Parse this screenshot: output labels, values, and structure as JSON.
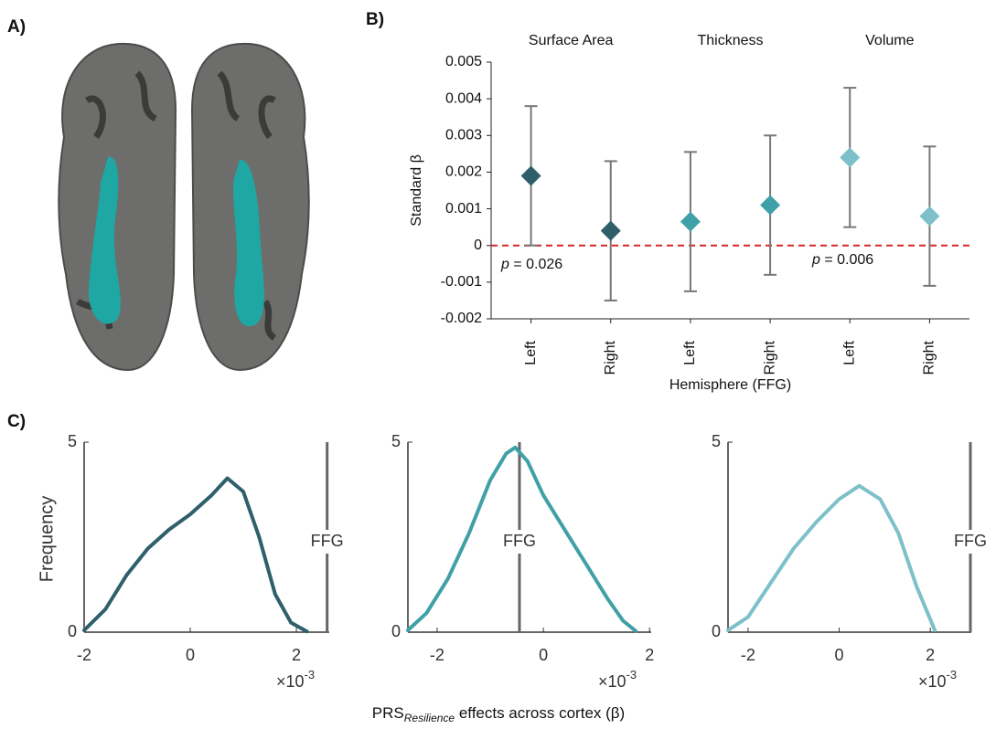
{
  "panel_labels": [
    "A)",
    "B)",
    "C)"
  ],
  "chart_data": [
    {
      "type": "errorbar",
      "categories": [
        "Left",
        "Right",
        "Left",
        "Right",
        "Left",
        "Right"
      ],
      "group_labels": [
        "Surface Area",
        "Thickness",
        "Volume"
      ],
      "values": [
        0.0019,
        0.0004,
        0.00065,
        0.0011,
        0.0024,
        0.0008
      ],
      "errors": [
        0.0019,
        0.0019,
        0.0019,
        0.0019,
        0.0019,
        0.0019
      ],
      "colors": [
        "#2e5f6b",
        "#2e5f6b",
        "#40a0a8",
        "#40a0a8",
        "#7ec0c9",
        "#7ec0c9"
      ],
      "error_color": "#777777",
      "ylim": [
        -0.002,
        0.005
      ],
      "yticks": [
        -0.002,
        -0.001,
        0,
        0.001,
        0.002,
        0.003,
        0.004,
        0.005
      ],
      "ylabel": "Standard β",
      "xlabel": "Hemisphere (FFG)",
      "reference_line": 0,
      "reference_color": "#d62728",
      "annotations": [
        "p = 0.026",
        "p = 0.006"
      ]
    },
    {
      "type": "line",
      "color": "#2e5f6b",
      "x": [
        -2.0,
        -1.6,
        -1.2,
        -0.8,
        -0.4,
        0,
        0.4,
        0.7,
        1.0,
        1.3,
        1.6,
        1.9,
        2.2
      ],
      "y": [
        0.05,
        0.6,
        1.5,
        2.2,
        2.7,
        3.1,
        3.6,
        4.05,
        3.7,
        2.5,
        1.0,
        0.25,
        0.02
      ],
      "xlim": [
        -2.0,
        2.62
      ],
      "xticks": [
        -2,
        0,
        2
      ],
      "ylim": [
        0,
        5
      ],
      "yticks": [
        0,
        5
      ],
      "ylabel": "Frequency",
      "marker_x": 2.58,
      "marker_label": "FFG",
      "x_multiplier": {
        "base": "×10",
        "exponent": "-3"
      }
    },
    {
      "type": "line",
      "color": "#40a0a8",
      "x": [
        -2.55,
        -2.2,
        -1.8,
        -1.4,
        -1.0,
        -0.7,
        -0.53,
        -0.3,
        0,
        0.4,
        0.8,
        1.2,
        1.5,
        1.74
      ],
      "y": [
        0.05,
        0.5,
        1.4,
        2.6,
        4.0,
        4.7,
        4.86,
        4.5,
        3.6,
        2.7,
        1.8,
        0.9,
        0.3,
        0.03
      ],
      "xlim": [
        -2.55,
        2.03
      ],
      "xticks": [
        -2,
        0,
        2
      ],
      "ylim": [
        0,
        5
      ],
      "yticks": [
        0,
        5
      ],
      "marker_x": -0.45,
      "marker_label": "FFG",
      "x_multiplier": {
        "base": "×10",
        "exponent": "-3"
      },
      "xlabel": {
        "main": "PRS",
        "sub": "Resilience",
        "rest": " effects across cortex (β)"
      }
    },
    {
      "type": "line",
      "color": "#7ec0c9",
      "x": [
        -2.44,
        -2.0,
        -1.5,
        -1.0,
        -0.5,
        0,
        0.44,
        0.9,
        1.3,
        1.7,
        2.1
      ],
      "y": [
        0.05,
        0.4,
        1.3,
        2.2,
        2.9,
        3.5,
        3.85,
        3.5,
        2.6,
        1.2,
        0.05
      ],
      "xlim": [
        -2.44,
        2.9
      ],
      "xticks": [
        -2,
        0,
        2
      ],
      "ylim": [
        0,
        5
      ],
      "yticks": [
        0,
        5
      ],
      "marker_x": 2.88,
      "marker_label": "FFG",
      "x_multiplier": {
        "base": "×10",
        "exponent": "-3"
      }
    }
  ]
}
